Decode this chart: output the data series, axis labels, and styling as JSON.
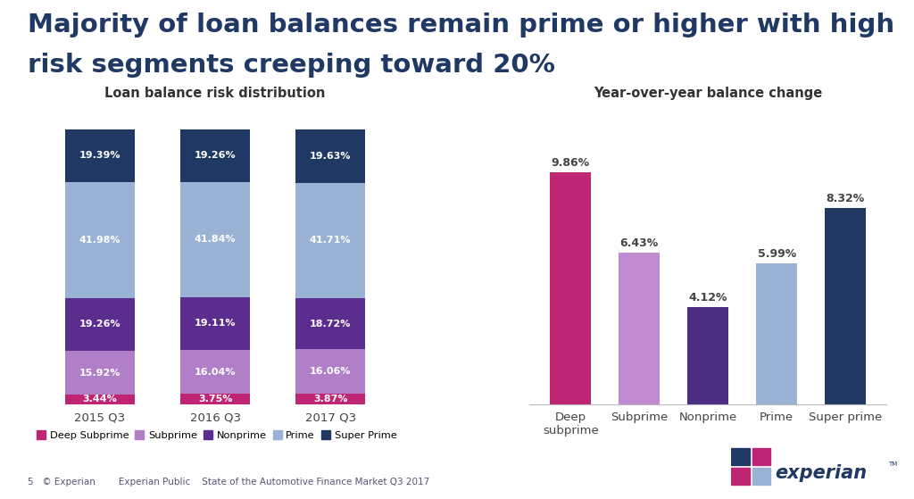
{
  "title_line1": "Majority of loan balances remain prime or higher with high",
  "title_line2": "risk segments creeping toward 20%",
  "title_color": "#1f3864",
  "title_fontsize": 21,
  "background_color": "#ffffff",
  "left_title": "Loan balance risk distribution",
  "right_title": "Year-over-year balance change",
  "stacked_categories": [
    "2015 Q3",
    "2016 Q3",
    "2017 Q3"
  ],
  "stacked_segments": [
    "Deep Subprime",
    "Subprime",
    "Nonprime",
    "Prime",
    "Super Prime"
  ],
  "stacked_colors": [
    "#be2573",
    "#b07fc8",
    "#5b2d8e",
    "#9ab3d5",
    "#1f3864"
  ],
  "stacked_data": [
    [
      3.44,
      15.92,
      19.26,
      41.98,
      19.39
    ],
    [
      3.75,
      16.04,
      19.11,
      41.84,
      19.26
    ],
    [
      3.87,
      16.06,
      18.72,
      41.71,
      19.63
    ]
  ],
  "bar_categories": [
    "Deep\nsubprime",
    "Subprime",
    "Nonprime",
    "Prime",
    "Super prime"
  ],
  "bar_values": [
    9.86,
    6.43,
    4.12,
    5.99,
    8.32
  ],
  "bar_colors": [
    "#be2573",
    "#c08bd0",
    "#4b2d82",
    "#9ab3d5",
    "#1f3864"
  ],
  "bar_labels": [
    "9.86%",
    "6.43%",
    "4.12%",
    "5.99%",
    "8.32%"
  ],
  "legend_labels": [
    "Deep Subprime",
    "Subprime",
    "Nonprime",
    "Prime",
    "Super Prime"
  ],
  "legend_colors": [
    "#be2573",
    "#b07fc8",
    "#5b2d8e",
    "#9ab3d5",
    "#1f3864"
  ],
  "footer_text": "5   © Experian        Experian Public    State of the Automotive Finance Market Q3 2017"
}
